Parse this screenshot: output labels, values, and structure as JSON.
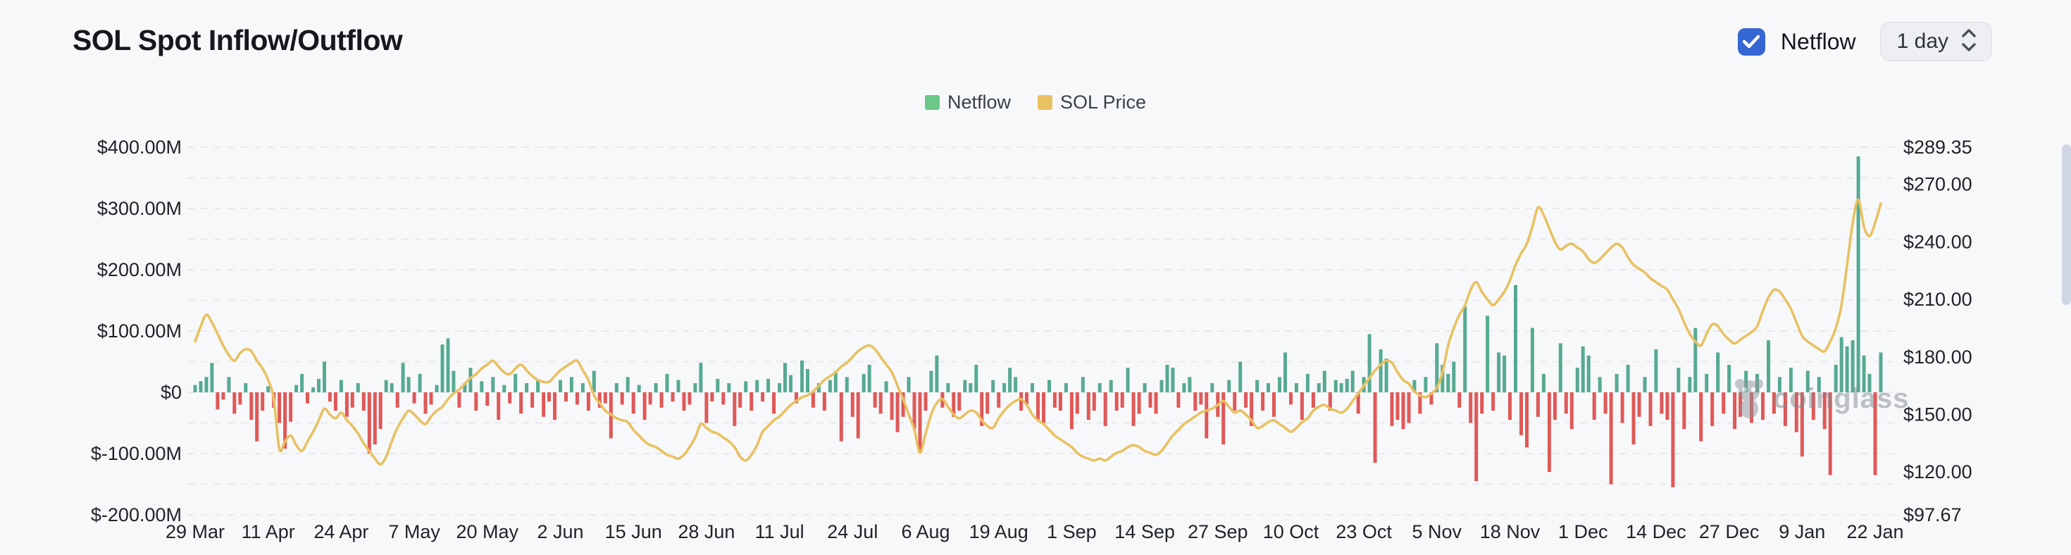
{
  "page": {
    "background": "#f7f8f9"
  },
  "header": {
    "title": "SOL Spot Inflow/Outflow",
    "netflow_toggle": {
      "label": "Netflow",
      "checked": true,
      "color": "#3567d4"
    },
    "interval_select": {
      "value": "1 day"
    }
  },
  "legend": {
    "items": [
      {
        "label": "Netflow",
        "color": "#6cc788"
      },
      {
        "label": "SOL Price",
        "color": "#e8c162"
      }
    ]
  },
  "watermark": {
    "text": "coinglass"
  },
  "chart_data": {
    "type": "bar",
    "title": "SOL Spot Inflow/Outflow",
    "grid": true,
    "legend_position": "top-center",
    "x_tick_labels": [
      "29 Mar",
      "11 Apr",
      "24 Apr",
      "7 May",
      "20 May",
      "2 Jun",
      "15 Jun",
      "28 Jun",
      "11 Jul",
      "24 Jul",
      "6 Aug",
      "19 Aug",
      "1 Sep",
      "14 Sep",
      "27 Sep",
      "10 Oct",
      "23 Oct",
      "5 Nov",
      "18 Nov",
      "1 Dec",
      "14 Dec",
      "27 Dec",
      "9 Jan",
      "22 Jan"
    ],
    "points_per_tick": 13,
    "left_axis": {
      "tick_labels": [
        "$400.00M",
        "$300.00M",
        "$200.00M",
        "$100.00M",
        "$0",
        "$-100.00M",
        "$-200.00M"
      ],
      "tick_values": [
        400,
        300,
        200,
        100,
        0,
        -100,
        -200
      ],
      "min": -200,
      "max": 400,
      "unit": "USD millions",
      "gridline_step": 50
    },
    "right_axis": {
      "tick_labels": [
        "$289.35",
        "$270.00",
        "$240.00",
        "$210.00",
        "$180.00",
        "$150.00",
        "$120.00",
        "$97.67"
      ],
      "tick_values": [
        289.35,
        270,
        240,
        210,
        180,
        150,
        120,
        97.67
      ],
      "min": 97.67,
      "max": 289.35,
      "unit": "USD"
    },
    "series": [
      {
        "name": "Netflow",
        "type": "bar",
        "axis": "left",
        "positive_color": "#56aa92",
        "negative_color": "#e05858",
        "unit": "$M",
        "values": [
          12,
          18,
          25,
          48,
          -28,
          -12,
          25,
          -35,
          -20,
          15,
          -45,
          -80,
          -30,
          10,
          -25,
          -50,
          -92,
          -48,
          12,
          30,
          -18,
          8,
          22,
          50,
          -15,
          -30,
          20,
          -40,
          -25,
          15,
          -30,
          -100,
          -85,
          -60,
          20,
          15,
          -25,
          48,
          25,
          -18,
          30,
          -35,
          -20,
          12,
          78,
          88,
          35,
          -25,
          15,
          40,
          -30,
          18,
          -22,
          25,
          -45,
          12,
          -18,
          30,
          -35,
          15,
          -25,
          20,
          -40,
          -15,
          -45,
          20,
          -15,
          25,
          -20,
          15,
          -30,
          35,
          -25,
          -18,
          -75,
          15,
          -20,
          25,
          -35,
          12,
          -45,
          -20,
          15,
          -25,
          30,
          -15,
          20,
          -30,
          -20,
          15,
          48,
          -50,
          -15,
          22,
          -20,
          15,
          -55,
          -25,
          18,
          -30,
          20,
          -15,
          22,
          -35,
          15,
          48,
          28,
          -18,
          52,
          38,
          -25,
          15,
          -30,
          20,
          35,
          -80,
          25,
          -40,
          -75,
          30,
          45,
          -25,
          -35,
          18,
          -45,
          -65,
          -40,
          25,
          -60,
          -95,
          -30,
          35,
          60,
          -25,
          15,
          -40,
          -30,
          20,
          15,
          45,
          -55,
          -35,
          20,
          -25,
          15,
          40,
          25,
          -30,
          -20,
          15,
          -45,
          -50,
          20,
          -25,
          -30,
          15,
          -60,
          -35,
          25,
          -45,
          -30,
          15,
          -55,
          20,
          -30,
          -25,
          40,
          -55,
          -35,
          15,
          -25,
          -35,
          20,
          45,
          40,
          -25,
          15,
          25,
          -30,
          -20,
          -75,
          15,
          -40,
          -85,
          20,
          -30,
          50,
          -25,
          -55,
          20,
          -30,
          15,
          -40,
          25,
          65,
          -20,
          15,
          -45,
          30,
          -25,
          15,
          35,
          -30,
          20,
          15,
          22,
          35,
          -35,
          25,
          95,
          -115,
          70,
          55,
          -55,
          -45,
          -60,
          -50,
          20,
          -35,
          25,
          -20,
          80,
          45,
          30,
          50,
          -25,
          140,
          -50,
          -145,
          -35,
          125,
          -30,
          65,
          60,
          -45,
          175,
          -70,
          -90,
          105,
          -40,
          30,
          -130,
          -45,
          80,
          -35,
          -60,
          40,
          75,
          60,
          -45,
          25,
          -35,
          -150,
          30,
          -50,
          45,
          -85,
          -40,
          25,
          -55,
          70,
          -35,
          -45,
          -155,
          40,
          -60,
          25,
          105,
          -80,
          30,
          -55,
          65,
          -35,
          45,
          -60,
          -40,
          35,
          -50,
          30,
          -45,
          85,
          -35,
          25,
          -55,
          40,
          -65,
          -105,
          35,
          -45,
          25,
          -60,
          -135,
          45,
          90,
          75,
          85,
          385,
          60,
          30,
          -135,
          65
        ]
      },
      {
        "name": "SOL Price",
        "type": "line",
        "axis": "right",
        "color": "#e8c162",
        "unit": "$",
        "values": [
          188,
          196,
          202,
          198,
          192,
          186,
          181,
          178,
          182,
          184,
          183,
          178,
          174,
          168,
          158,
          132,
          136,
          139,
          134,
          131,
          136,
          141,
          147,
          153,
          150,
          148,
          151,
          147,
          144,
          140,
          135,
          131,
          127,
          124,
          128,
          136,
          143,
          148,
          152,
          150,
          147,
          145,
          149,
          152,
          154,
          158,
          161,
          163,
          166,
          169,
          171,
          174,
          176,
          178,
          175,
          172,
          171,
          174,
          176,
          173,
          170,
          168,
          167,
          167,
          170,
          173,
          175,
          177,
          178,
          173,
          168,
          160,
          156,
          152,
          150,
          148,
          147,
          146,
          142,
          139,
          136,
          134,
          133,
          131,
          129,
          128,
          127,
          129,
          133,
          138,
          145,
          143,
          141,
          140,
          138,
          136,
          133,
          128,
          126,
          129,
          134,
          141,
          144,
          147,
          149,
          152,
          155,
          157,
          159,
          160,
          162,
          165,
          168,
          170,
          172,
          175,
          177,
          180,
          183,
          185,
          186,
          184,
          180,
          176,
          172,
          165,
          158,
          150,
          142,
          130,
          140,
          150,
          156,
          158,
          154,
          150,
          148,
          150,
          152,
          151,
          147,
          144,
          143,
          148,
          152,
          155,
          157,
          158,
          155,
          150,
          147,
          145,
          142,
          139,
          137,
          135,
          133,
          130,
          128,
          127,
          126,
          127,
          126,
          128,
          130,
          131,
          133,
          134,
          133,
          131,
          130,
          129,
          131,
          135,
          139,
          142,
          145,
          147,
          149,
          151,
          152,
          153,
          155,
          157,
          154,
          151,
          152,
          150,
          147,
          143,
          144,
          146,
          147,
          145,
          143,
          141,
          143,
          146,
          148,
          152,
          154,
          155,
          153,
          152,
          151,
          153,
          157,
          161,
          165,
          169,
          173,
          176,
          178,
          177,
          172,
          168,
          166,
          162,
          160,
          159,
          161,
          164,
          172,
          186,
          195,
          202,
          207,
          215,
          219,
          214,
          210,
          207,
          210,
          214,
          220,
          228,
          234,
          239,
          248,
          258,
          254,
          247,
          240,
          236,
          238,
          239,
          237,
          235,
          231,
          229,
          231,
          234,
          237,
          239,
          237,
          232,
          228,
          226,
          224,
          221,
          219,
          217,
          215,
          210,
          205,
          198,
          192,
          188,
          186,
          192,
          197,
          196,
          192,
          189,
          187,
          189,
          191,
          193,
          196,
          204,
          211,
          215,
          214,
          210,
          205,
          198,
          191,
          188,
          186,
          184,
          183,
          188,
          195,
          207,
          228,
          250,
          262,
          248,
          243,
          250,
          260
        ]
      }
    ]
  }
}
